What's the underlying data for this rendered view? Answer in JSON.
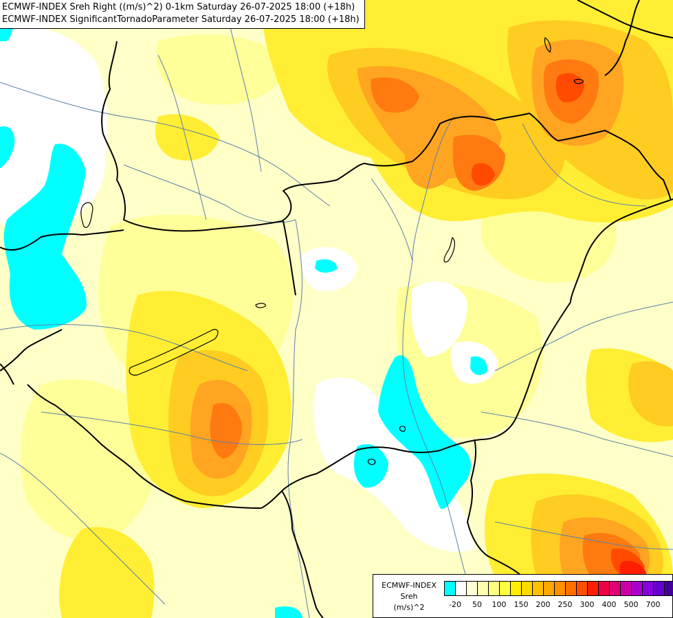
{
  "header": {
    "line1": "ECMWF-INDEX Sreh Right ((m/s)^2) 0-1km Saturday 26-07-2025 18:00 (+18h)",
    "line2": "ECMWF-INDEX SignificantTornadoParameter Saturday 26-07-2025 18:00 (+18h)"
  },
  "legend": {
    "source": "ECMWF-INDEX",
    "variable": "Sreh",
    "unit": "(m/s)^2",
    "colors": [
      "#00ffff",
      "#ffffff",
      "#ffffd2",
      "#ffffb0",
      "#ffff80",
      "#ffff40",
      "#ffee00",
      "#ffd800",
      "#ffc000",
      "#ffa800",
      "#ff9000",
      "#ff7000",
      "#ff5000",
      "#ff2000",
      "#ee0044",
      "#dd0077",
      "#cc00aa",
      "#aa00cc",
      "#8800dd",
      "#6600cc",
      "#440099",
      "#000066"
    ],
    "ticks": [
      {
        "label": "-20",
        "index": 0.5
      },
      {
        "label": "50",
        "index": 2.5
      },
      {
        "label": "100",
        "index": 4.5
      },
      {
        "label": "150",
        "index": 6.5
      },
      {
        "label": "200",
        "index": 8.5
      },
      {
        "label": "250",
        "index": 10.5
      },
      {
        "label": "300",
        "index": 12.5
      },
      {
        "label": "400",
        "index": 14.5
      },
      {
        "label": "500",
        "index": 16.5
      },
      {
        "label": "700",
        "index": 18.5
      }
    ]
  },
  "palette": {
    "background": "#ffffc8",
    "cyan": "#00ffff",
    "white": "#ffffff",
    "yellow_light": "#ffff99",
    "yellow": "#ffee33",
    "gold": "#ffcc22",
    "orange": "#ffa522",
    "dark_orange": "#ff7a10",
    "red_orange": "#ff4a00",
    "red": "#ff1e00",
    "border": "#000000",
    "river": "#5d7fa8"
  }
}
